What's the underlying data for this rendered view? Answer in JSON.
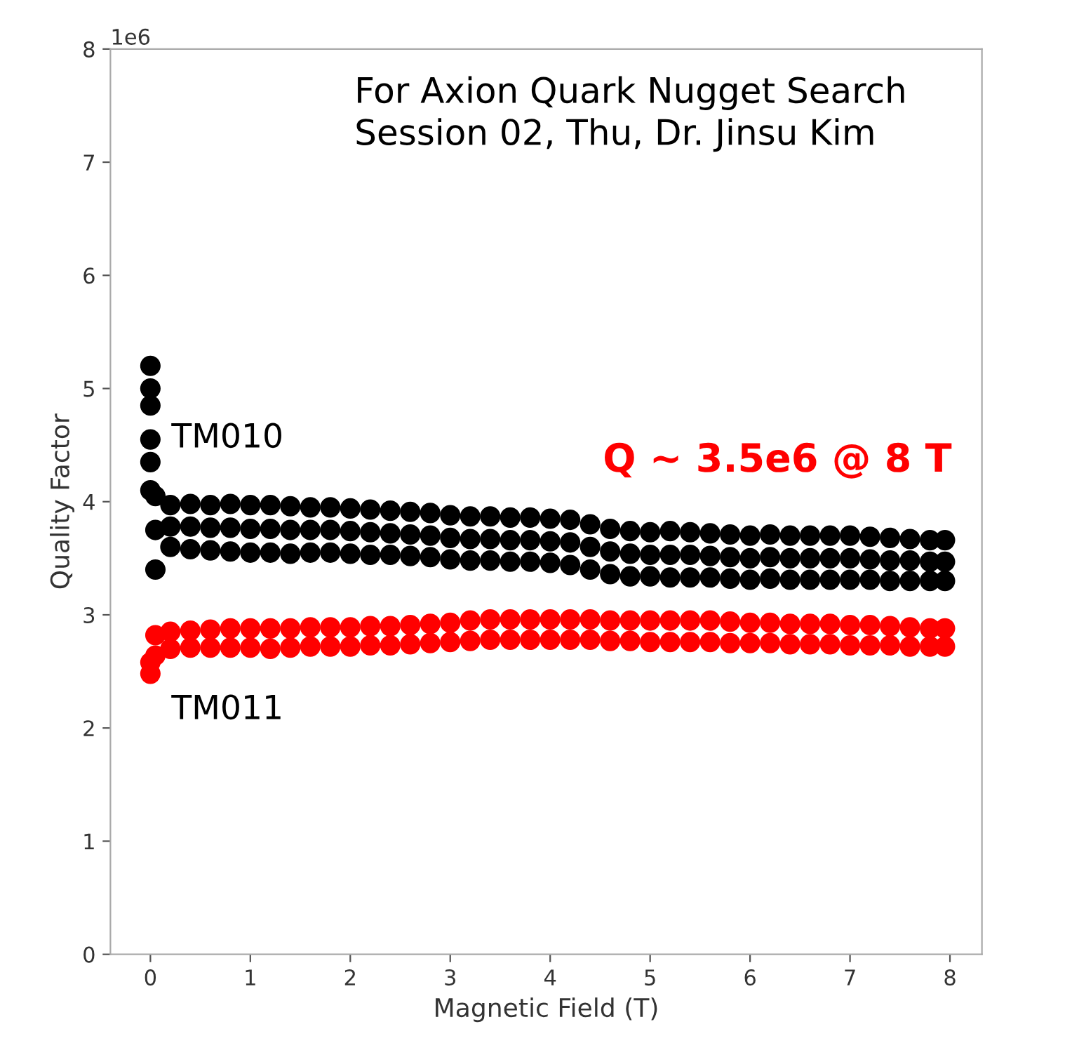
{
  "chart_data": {
    "type": "scatter",
    "xlabel": "Magnetic Field (T)",
    "ylabel": "Quality Factor",
    "xlim": [
      -0.4,
      8.32
    ],
    "xticks": [
      0,
      1,
      2,
      3,
      4,
      5,
      6,
      7,
      8
    ],
    "ylim": [
      0,
      8
    ],
    "yticks": [
      0,
      1,
      2,
      3,
      4,
      5,
      6,
      7,
      8
    ],
    "grid": false,
    "legend": false,
    "marker": "circle",
    "annotations": [
      "1e6",
      "For Axion Quark Nugget Search\nSession 02, Thu, Dr. Jinsu Kim",
      "Q ~ 3.5e6 @ 8 T"
    ],
    "series": [
      {
        "name": "TM010",
        "color": "#000000",
        "x": [
          0,
          0,
          0,
          0,
          0,
          0,
          0.05,
          0.2,
          0.4,
          0.6,
          0.8,
          1.0,
          1.2,
          1.4,
          1.6,
          1.8,
          2.0,
          2.2,
          2.4,
          2.6,
          2.8,
          3.0,
          3.2,
          3.4,
          3.6,
          3.8,
          4.0,
          4.2,
          4.4,
          4.6,
          4.8,
          5.0,
          5.2,
          5.4,
          5.6,
          5.8,
          6.0,
          6.2,
          6.4,
          6.6,
          6.8,
          7.0,
          7.2,
          7.4,
          7.6,
          7.8,
          7.95,
          0.05,
          0.2,
          0.4,
          0.6,
          0.8,
          1.0,
          1.2,
          1.4,
          1.6,
          1.8,
          2.0,
          2.2,
          2.4,
          2.6,
          2.8,
          3.0,
          3.2,
          3.4,
          3.6,
          3.8,
          4.0,
          4.2,
          4.4,
          4.6,
          4.8,
          5.0,
          5.2,
          5.4,
          5.6,
          5.8,
          6.0,
          6.2,
          6.4,
          6.6,
          6.8,
          7.0,
          7.2,
          7.4,
          7.6,
          7.8,
          7.95,
          0.05,
          0.2,
          0.4,
          0.6,
          0.8,
          1.0,
          1.2,
          1.4,
          1.6,
          1.8,
          2.0,
          2.2,
          2.4,
          2.6,
          2.8,
          3.0,
          3.2,
          3.4,
          3.6,
          3.8,
          4.0,
          4.2,
          4.4,
          4.6,
          4.8,
          5.0,
          5.2,
          5.4,
          5.6,
          5.8,
          6.0,
          6.2,
          6.4,
          6.6,
          6.8,
          7.0,
          7.2,
          7.4,
          7.6,
          7.8,
          7.95
        ],
        "values": [
          5.2,
          5.0,
          4.85,
          4.55,
          4.35,
          4.1,
          4.05,
          3.97,
          3.98,
          3.97,
          3.98,
          3.97,
          3.97,
          3.96,
          3.95,
          3.95,
          3.94,
          3.93,
          3.92,
          3.91,
          3.9,
          3.88,
          3.87,
          3.87,
          3.86,
          3.86,
          3.85,
          3.84,
          3.8,
          3.76,
          3.74,
          3.73,
          3.74,
          3.73,
          3.72,
          3.71,
          3.7,
          3.71,
          3.7,
          3.7,
          3.7,
          3.7,
          3.69,
          3.68,
          3.67,
          3.66,
          3.66,
          3.75,
          3.78,
          3.78,
          3.77,
          3.77,
          3.76,
          3.76,
          3.75,
          3.75,
          3.75,
          3.74,
          3.73,
          3.72,
          3.71,
          3.7,
          3.68,
          3.67,
          3.67,
          3.66,
          3.66,
          3.65,
          3.64,
          3.6,
          3.56,
          3.54,
          3.53,
          3.53,
          3.53,
          3.52,
          3.51,
          3.5,
          3.51,
          3.5,
          3.5,
          3.5,
          3.5,
          3.49,
          3.48,
          3.48,
          3.47,
          3.47,
          3.4,
          3.6,
          3.58,
          3.57,
          3.56,
          3.55,
          3.55,
          3.54,
          3.55,
          3.55,
          3.54,
          3.53,
          3.53,
          3.52,
          3.51,
          3.49,
          3.48,
          3.48,
          3.47,
          3.47,
          3.46,
          3.44,
          3.4,
          3.36,
          3.34,
          3.34,
          3.33,
          3.33,
          3.33,
          3.32,
          3.31,
          3.32,
          3.31,
          3.31,
          3.31,
          3.31,
          3.31,
          3.3,
          3.3,
          3.3,
          3.3
        ]
      },
      {
        "name": "TM011",
        "color": "#ff0000",
        "x": [
          0,
          0,
          0.05,
          0.2,
          0.4,
          0.6,
          0.8,
          1.0,
          1.2,
          1.4,
          1.6,
          1.8,
          2.0,
          2.2,
          2.4,
          2.6,
          2.8,
          3.0,
          3.2,
          3.4,
          3.6,
          3.8,
          4.0,
          4.2,
          4.4,
          4.6,
          4.8,
          5.0,
          5.2,
          5.4,
          5.6,
          5.8,
          6.0,
          6.2,
          6.4,
          6.6,
          6.8,
          7.0,
          7.2,
          7.4,
          7.6,
          7.8,
          7.95,
          0.05,
          0.2,
          0.4,
          0.6,
          0.8,
          1.0,
          1.2,
          1.4,
          1.6,
          1.8,
          2.0,
          2.2,
          2.4,
          2.6,
          2.8,
          3.0,
          3.2,
          3.4,
          3.6,
          3.8,
          4.0,
          4.2,
          4.4,
          4.6,
          4.8,
          5.0,
          5.2,
          5.4,
          5.6,
          5.8,
          6.0,
          6.2,
          6.4,
          6.6,
          6.8,
          7.0,
          7.2,
          7.4,
          7.6,
          7.8,
          7.95
        ],
        "values": [
          2.48,
          2.58,
          2.82,
          2.85,
          2.86,
          2.87,
          2.88,
          2.88,
          2.88,
          2.88,
          2.89,
          2.89,
          2.89,
          2.9,
          2.9,
          2.91,
          2.92,
          2.93,
          2.95,
          2.96,
          2.96,
          2.96,
          2.96,
          2.96,
          2.96,
          2.95,
          2.95,
          2.95,
          2.95,
          2.95,
          2.95,
          2.94,
          2.93,
          2.93,
          2.92,
          2.92,
          2.92,
          2.91,
          2.91,
          2.9,
          2.89,
          2.88,
          2.88,
          2.64,
          2.7,
          2.71,
          2.71,
          2.71,
          2.71,
          2.7,
          2.71,
          2.72,
          2.72,
          2.72,
          2.73,
          2.73,
          2.74,
          2.75,
          2.76,
          2.77,
          2.78,
          2.78,
          2.78,
          2.78,
          2.78,
          2.78,
          2.77,
          2.77,
          2.76,
          2.76,
          2.76,
          2.76,
          2.75,
          2.75,
          2.75,
          2.74,
          2.74,
          2.74,
          2.73,
          2.73,
          2.73,
          2.72,
          2.72,
          2.72
        ]
      }
    ]
  }
}
